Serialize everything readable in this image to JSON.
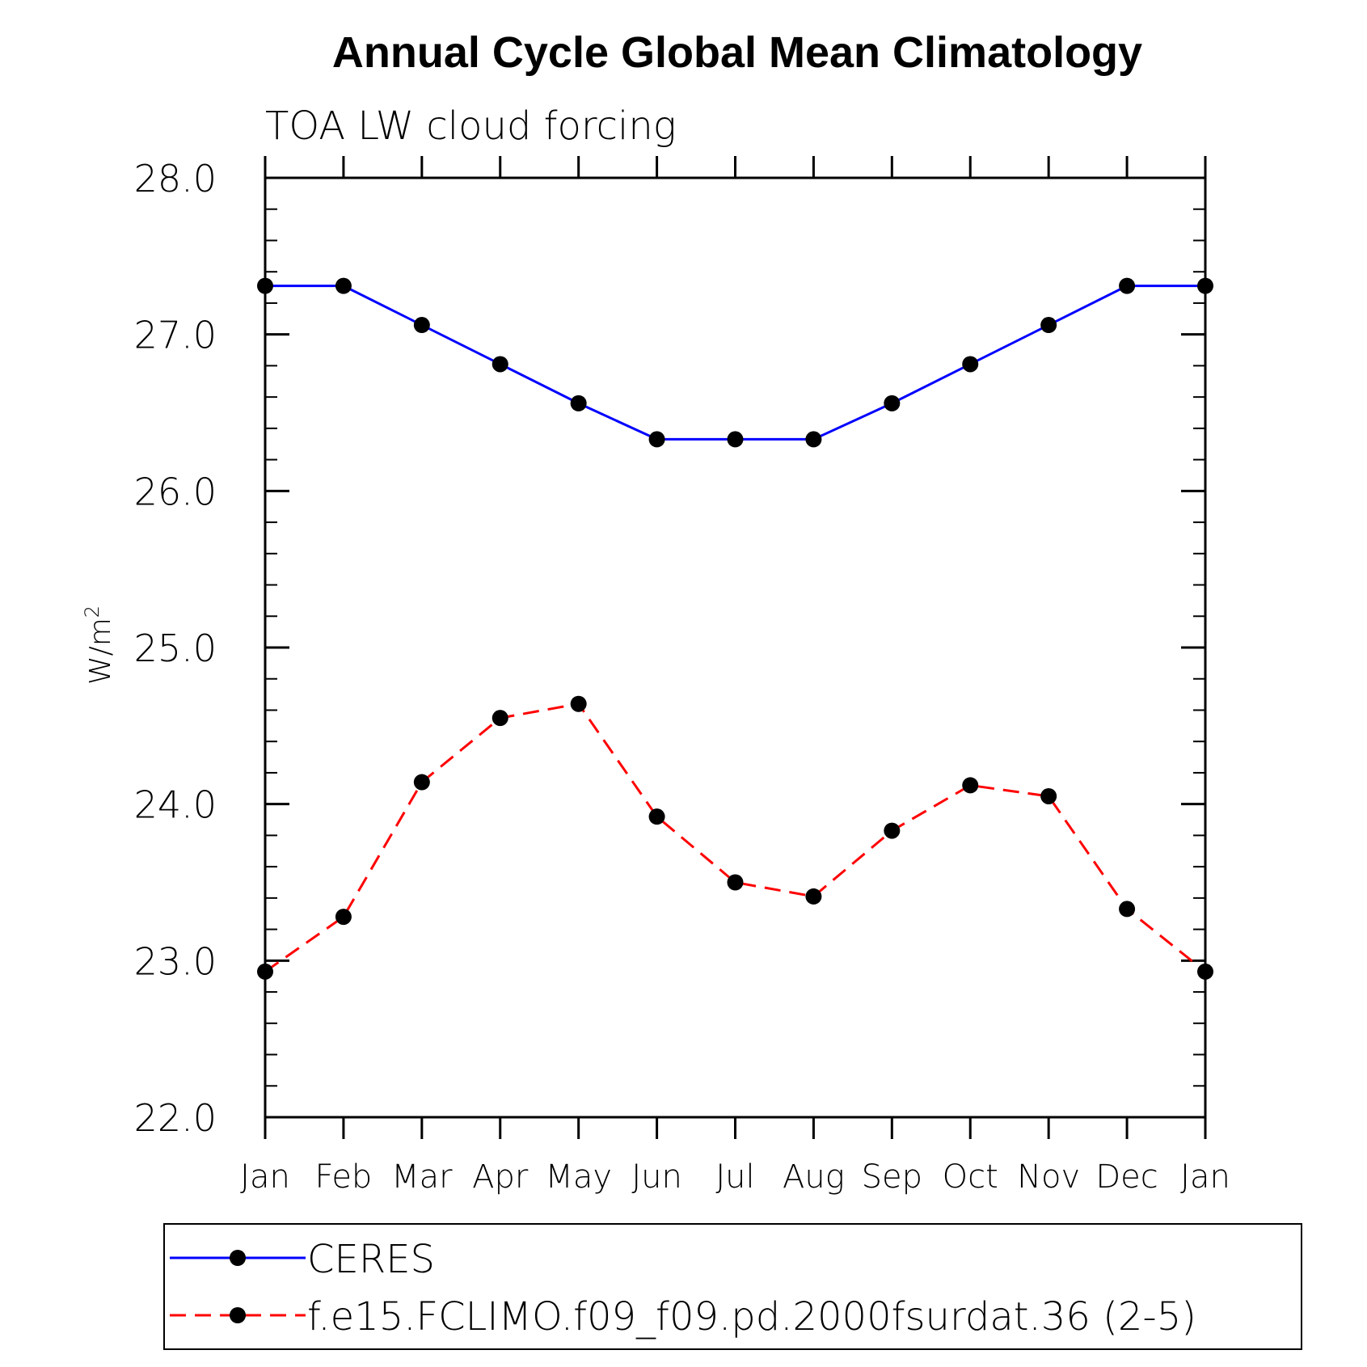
{
  "chart_data": {
    "type": "line",
    "title": "Annual Cycle Global Mean Climatology",
    "subtitle": "TOA LW cloud forcing",
    "ylabel": "W/m",
    "ylabel_sup": "2",
    "xlabel": "",
    "categories": [
      "Jan",
      "Feb",
      "Mar",
      "Apr",
      "May",
      "Jun",
      "Jul",
      "Aug",
      "Sep",
      "Oct",
      "Nov",
      "Dec",
      "Jan"
    ],
    "ylim": [
      22.0,
      28.0
    ],
    "yticks": [
      "22.0",
      "23.0",
      "24.0",
      "25.0",
      "26.0",
      "27.0",
      "28.0"
    ],
    "grid": false,
    "legend_position": "bottom",
    "series": [
      {
        "name": "CERES",
        "color": "#0000ff",
        "dash": "solid",
        "values": [
          27.31,
          27.31,
          27.06,
          26.81,
          26.56,
          26.33,
          26.33,
          26.33,
          26.56,
          26.81,
          27.06,
          27.31,
          27.31
        ]
      },
      {
        "name": "f.e15.FCLIMO.f09_f09.pd.2000fsurdat.36 (2-5)",
        "color": "#ff0000",
        "dash": "dashed",
        "values": [
          22.93,
          23.28,
          24.14,
          24.55,
          24.64,
          23.92,
          23.5,
          23.41,
          23.83,
          24.12,
          24.05,
          23.33,
          22.93
        ]
      }
    ]
  }
}
